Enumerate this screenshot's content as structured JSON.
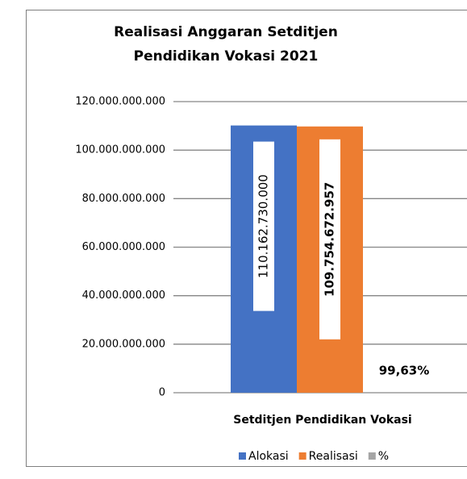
{
  "chart_data": {
    "type": "bar",
    "title": "Realisasi Anggaran Setditjen Pendidikan Vokasi 2021",
    "categories": [
      "Setditjen Pendidikan Vokasi"
    ],
    "series": [
      {
        "name": "Alokasi",
        "color": "#4472c4",
        "values": [
          110162730000
        ],
        "value_labels": [
          "110.162.730.000"
        ]
      },
      {
        "name": "Realisasi",
        "color": "#ed7d31",
        "values": [
          109754672957
        ],
        "value_labels": [
          "109.754.672.957"
        ]
      },
      {
        "name": "%",
        "color": "#a5a5a5",
        "values": [
          99.63
        ],
        "value_labels": [
          "99,63%"
        ]
      }
    ],
    "ylim": [
      0,
      120000000000
    ],
    "yticks": [
      0,
      {
        "value": 20000000000,
        "label": "20.000.000.000"
      },
      {
        "value": 40000000000,
        "label": "40.000.000.000"
      },
      {
        "value": 60000000000,
        "label": "60.000.000.000"
      },
      {
        "value": 80000000000,
        "label": "80.000.000.000"
      },
      {
        "value": 100000000000,
        "label": "100.000.000.000"
      },
      {
        "value": 120000000000,
        "label": "120.000.000.000"
      }
    ],
    "grid": true,
    "legend": "bottom"
  }
}
